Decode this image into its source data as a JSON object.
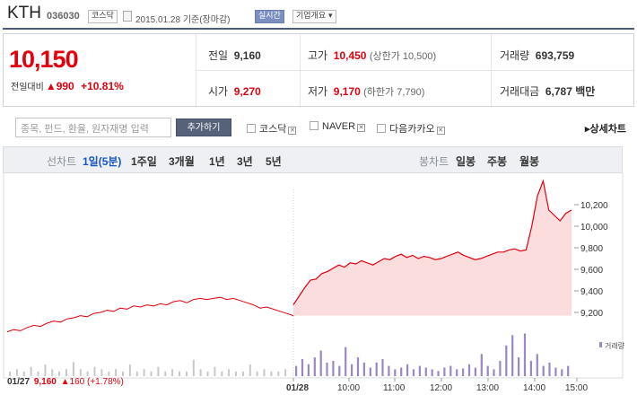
{
  "header": {
    "name": "KTH",
    "code": "036030",
    "market": "코스닥",
    "date": "2015.01.28 기준(장마감)",
    "realtime": "실시간",
    "overview": "기업개요"
  },
  "price": {
    "current": "10,150",
    "change_label": "전일대비",
    "arrow": "▲",
    "change": "990",
    "rate": "+10.81%"
  },
  "quote": {
    "prev_label": "전일",
    "prev": "9,160",
    "high_label": "고가",
    "high": "10,450",
    "upper_limit": "(상한가 10,500)",
    "volume_label": "거래량",
    "volume": "693,759",
    "open_label": "시가",
    "open": "9,270",
    "low_label": "저가",
    "low": "9,170",
    "lower_limit": "(하한가 7,790)",
    "amount_label": "거래대금",
    "amount": "6,787 백만"
  },
  "compare": {
    "placeholder": "종목, 펀드, 환율, 원자재명 입력",
    "add_label": "추가하기",
    "options": [
      "코스닥",
      "NAVER",
      "다음카카오"
    ],
    "detail_label": "상세차트"
  },
  "periods": {
    "line_label": "선차트",
    "line": [
      "1일(5분)",
      "1주일",
      "3개월",
      "1년",
      "3년",
      "5년"
    ],
    "candle_label": "봉차트",
    "candle": [
      "일봉",
      "주봉",
      "월봉"
    ]
  },
  "chart_data": {
    "type": "area",
    "y_ticks": [
      "10,200",
      "10,000",
      "9,800",
      "9,600",
      "9,400",
      "9,200"
    ],
    "ylim": [
      9000,
      10350
    ],
    "x_ticks": [
      "01/28",
      "10:00",
      "11:00",
      "12:00",
      "13:00",
      "14:00",
      "15:00"
    ],
    "prev_day": {
      "label": "01/27",
      "close": "9,160",
      "arrow": "▲",
      "change": "160",
      "rate": "(+1.78%)"
    },
    "volume_legend": "거래량",
    "colors": {
      "line": "#e0000e",
      "fill": "#fcd9d9",
      "volume_today": "#9b87c5",
      "volume_prev": "#c8c8c8"
    },
    "prev_series": [
      9020,
      9040,
      9030,
      9060,
      9080,
      9070,
      9100,
      9120,
      9110,
      9140,
      9150,
      9170,
      9160,
      9190,
      9200,
      9220,
      9210,
      9240,
      9230,
      9260,
      9250,
      9270,
      9260,
      9280,
      9270,
      9300,
      9310,
      9290,
      9320,
      9330,
      9320,
      9330,
      9340,
      9320,
      9330,
      9310,
      9290,
      9270,
      9240,
      9250,
      9230,
      9210,
      9190,
      9170
    ],
    "today_series": [
      9270,
      9350,
      9430,
      9500,
      9510,
      9560,
      9580,
      9610,
      9640,
      9620,
      9660,
      9650,
      9680,
      9660,
      9640,
      9670,
      9700,
      9690,
      9720,
      9740,
      9710,
      9730,
      9700,
      9720,
      9710,
      9690,
      9700,
      9720,
      9740,
      9760,
      9730,
      9710,
      9690,
      9700,
      9720,
      9740,
      9760,
      9760,
      9780,
      9790,
      9770,
      9780,
      10000,
      10280,
      10420,
      10150,
      10100,
      10050,
      10120,
      10150
    ],
    "prev_volume": [
      2,
      3,
      2,
      4,
      2,
      5,
      3,
      2,
      3,
      6,
      3,
      2,
      4,
      3,
      2,
      3,
      2,
      5,
      2,
      3,
      2,
      4,
      2,
      3,
      2,
      2,
      7,
      3,
      2,
      4,
      2,
      3,
      2,
      2,
      5,
      2,
      3,
      2,
      2,
      3
    ],
    "today_volume": [
      12,
      20,
      14,
      22,
      30,
      16,
      18,
      12,
      34,
      14,
      22,
      16,
      10,
      16,
      20,
      12,
      8,
      10,
      14,
      8,
      12,
      10,
      8,
      6,
      10,
      12,
      8,
      9,
      14,
      10,
      26,
      12,
      8,
      18,
      36,
      48,
      22,
      50,
      18,
      26,
      12,
      16,
      10,
      8,
      12
    ]
  }
}
